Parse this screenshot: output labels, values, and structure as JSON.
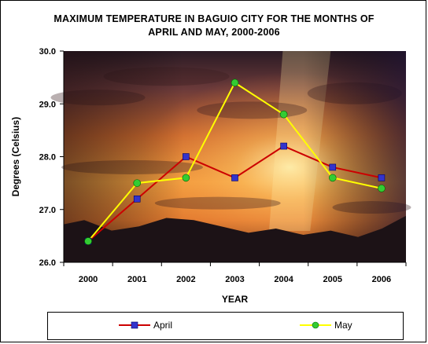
{
  "chart_data": {
    "type": "line",
    "title": "MAXIMUM TEMPERATURE IN BAGUIO CITY FOR THE MONTHS OF",
    "subtitle": "APRIL AND MAY, 2000-2006",
    "xlabel": "YEAR",
    "ylabel": "Degrees (Celsius)",
    "categories": [
      "2000",
      "2001",
      "2002",
      "2003",
      "2004",
      "2005",
      "2006"
    ],
    "ylim": [
      26.0,
      30.0
    ],
    "yticks": [
      "26.0",
      "27.0",
      "28.0",
      "29.0",
      "30.0"
    ],
    "series": [
      {
        "name": "April",
        "values": [
          26.4,
          27.2,
          28.0,
          27.6,
          28.2,
          27.8,
          27.6
        ],
        "line_color": "#cc0000",
        "marker_color": "#3333cc",
        "marker": "square"
      },
      {
        "name": "May",
        "values": [
          26.4,
          27.5,
          27.6,
          29.4,
          28.8,
          27.6,
          27.4
        ],
        "line_color": "#ffff00",
        "marker_color": "#33cc33",
        "marker": "circle"
      }
    ],
    "legend": "bottom",
    "background": "sunset photo"
  }
}
